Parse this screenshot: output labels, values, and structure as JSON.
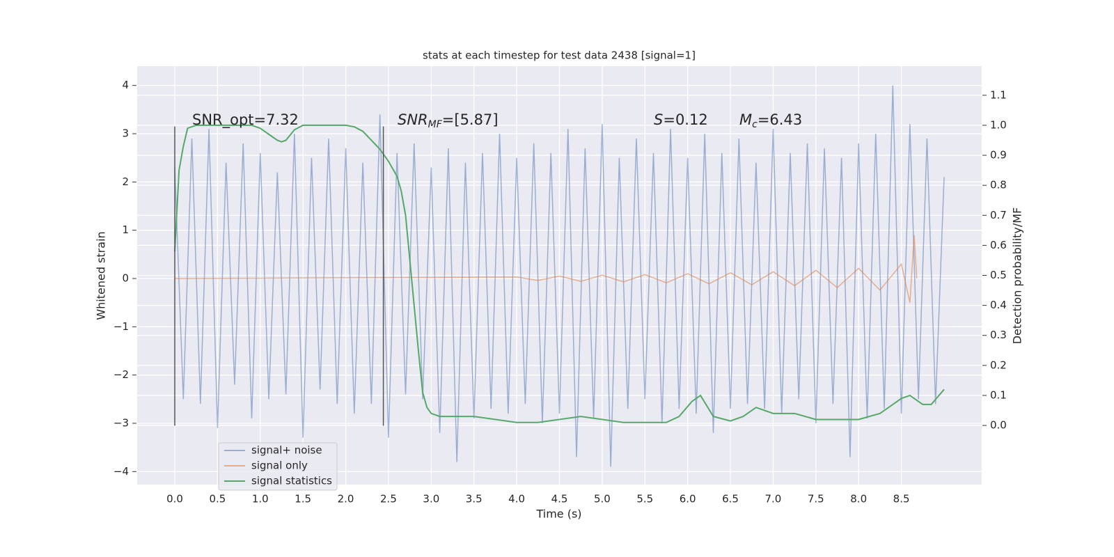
{
  "chart_data": {
    "type": "line",
    "title": "stats at each timestep for test data 2438 [signal=1]",
    "xlabel": "Time (s)",
    "ylabel": "Whitened strain",
    "y2label": "Detection probability/MF",
    "xlim": [
      -0.44,
      9.44
    ],
    "ylim": [
      -4.27,
      4.4
    ],
    "y2lim": [
      -0.197,
      1.197
    ],
    "xticks": [
      {
        "value": 0,
        "label": "0.0"
      },
      {
        "value": 0.5,
        "label": "0.5"
      },
      {
        "value": 1,
        "label": "1.0"
      },
      {
        "value": 1.5,
        "label": "1.5"
      },
      {
        "value": 2,
        "label": "2.0"
      },
      {
        "value": 2.5,
        "label": "2.5"
      },
      {
        "value": 3,
        "label": "3.0"
      },
      {
        "value": 3.5,
        "label": "3.5"
      },
      {
        "value": 4,
        "label": "4.0"
      },
      {
        "value": 4.5,
        "label": "4.5"
      },
      {
        "value": 5,
        "label": "5.0"
      },
      {
        "value": 5.5,
        "label": "5.5"
      },
      {
        "value": 6,
        "label": "6.0"
      },
      {
        "value": 6.5,
        "label": "6.5"
      },
      {
        "value": 7,
        "label": "7.0"
      },
      {
        "value": 7.5,
        "label": "7.5"
      },
      {
        "value": 8,
        "label": "8.0"
      },
      {
        "value": 8.5,
        "label": "8.5"
      }
    ],
    "yticks": [
      {
        "value": -4,
        "label": "−4"
      },
      {
        "value": -3,
        "label": "−3"
      },
      {
        "value": -2,
        "label": "−2"
      },
      {
        "value": -1,
        "label": "−1"
      },
      0,
      1,
      2,
      3,
      4
    ],
    "y2ticks": [
      {
        "value": 0,
        "label": "0.0"
      },
      {
        "value": 0.1,
        "label": "0.1"
      },
      {
        "value": 0.2,
        "label": "0.2"
      },
      {
        "value": 0.3,
        "label": "0.3"
      },
      {
        "value": 0.4,
        "label": "0.4"
      },
      {
        "value": 0.5,
        "label": "0.5"
      },
      {
        "value": 0.6,
        "label": "0.6"
      },
      {
        "value": 0.7,
        "label": "0.7"
      },
      {
        "value": 0.8,
        "label": "0.8"
      },
      {
        "value": 0.9,
        "label": "0.9"
      },
      {
        "value": 1.0,
        "label": "1.0"
      },
      {
        "value": 1.1,
        "label": "1.1"
      }
    ],
    "grid": true,
    "legend": "lower left",
    "vlines": [
      0,
      2.44
    ],
    "vline_range": [
      -3.05,
      3.15
    ],
    "annotations": [
      {
        "text": "SNR_opt=7.32"
      },
      {
        "italic": "SNR",
        "sub": "MF",
        "text": "=[5.87]"
      },
      {
        "italic": "S",
        "text": "=0.12"
      },
      {
        "italic": "M",
        "sub": "c",
        "text": "=6.43"
      }
    ],
    "series": [
      {
        "name": "signal+ noise",
        "color": "#4c72b0",
        "opacity": 0.5,
        "x": [
          0,
          0.1,
          0.2,
          0.3,
          0.4,
          0.5,
          0.6,
          0.7,
          0.8,
          0.9,
          1,
          1.1,
          1.2,
          1.3,
          1.4,
          1.5,
          1.6,
          1.7,
          1.8,
          1.9,
          2,
          2.1,
          2.2,
          2.3,
          2.4,
          2.5,
          2.6,
          2.7,
          2.8,
          2.9,
          3,
          3.1,
          3.2,
          3.3,
          3.4,
          3.5,
          3.6,
          3.7,
          3.8,
          3.9,
          4,
          4.1,
          4.2,
          4.3,
          4.4,
          4.5,
          4.6,
          4.7,
          4.8,
          4.9,
          5,
          5.1,
          5.2,
          5.3,
          5.4,
          5.5,
          5.6,
          5.7,
          5.8,
          5.9,
          6,
          6.1,
          6.2,
          6.3,
          6.4,
          6.5,
          6.6,
          6.7,
          6.8,
          6.9,
          7,
          7.1,
          7.2,
          7.3,
          7.4,
          7.5,
          7.6,
          7.7,
          7.8,
          7.9,
          8,
          8.1,
          8.2,
          8.3,
          8.4,
          8.5,
          8.6,
          8.7,
          8.8,
          8.9,
          9
        ],
        "values": [
          2.3,
          -2.5,
          2.9,
          -2.6,
          3.1,
          -3.1,
          2.4,
          -2.2,
          2.8,
          -2.9,
          2.6,
          -2.5,
          2.2,
          -2.4,
          3.0,
          -3.3,
          2.5,
          -2.3,
          2.9,
          -2.6,
          2.7,
          -2.8,
          2.4,
          -2.6,
          3.4,
          -3.3,
          2.6,
          -2.4,
          2.8,
          -2.5,
          2.3,
          -3.2,
          2.7,
          -3.8,
          2.4,
          -2.9,
          2.6,
          -2.7,
          3.0,
          -2.8,
          2.5,
          -2.6,
          2.8,
          -3.0,
          2.6,
          -2.8,
          3.1,
          -3.7,
          2.7,
          -2.9,
          3.2,
          -3.9,
          2.5,
          -2.7,
          2.9,
          -2.5,
          2.6,
          -3.0,
          3.1,
          -2.7,
          2.5,
          -2.8,
          3.0,
          -3.2,
          2.6,
          -2.7,
          2.9,
          -2.6,
          2.4,
          -2.7,
          3.1,
          -2.8,
          2.6,
          -2.5,
          2.8,
          -3.0,
          2.7,
          -2.6,
          2.5,
          -3.7,
          2.8,
          -2.9,
          3.0,
          -2.7,
          4.0,
          -2.8,
          3.2,
          -2.5,
          2.9,
          -2.6,
          2.1
        ]
      },
      {
        "name": "signal only",
        "color": "#dd8452",
        "opacity": 0.6,
        "x": [
          0,
          4,
          4.25,
          4.5,
          4.75,
          5,
          5.25,
          5.5,
          5.75,
          6,
          6.25,
          6.5,
          6.75,
          7,
          7.25,
          7.5,
          7.75,
          8,
          8.25,
          8.5,
          8.6,
          8.65,
          8.68
        ],
        "values": [
          0,
          0.03,
          -0.04,
          0.05,
          -0.06,
          0.07,
          -0.07,
          0.08,
          -0.09,
          0.1,
          -0.11,
          0.12,
          -0.13,
          0.14,
          -0.15,
          0.17,
          -0.19,
          0.21,
          -0.24,
          0.3,
          -0.5,
          0.9,
          0
        ]
      },
      {
        "name": "signal statistics",
        "color": "#55a868",
        "opacity": 1,
        "axis": "y2",
        "x": [
          0,
          0.05,
          0.1,
          0.15,
          0.25,
          0.5,
          0.9,
          1,
          1.1,
          1.2,
          1.25,
          1.3,
          1.4,
          1.5,
          1.75,
          2,
          2.1,
          2.2,
          2.3,
          2.4,
          2.5,
          2.6,
          2.65,
          2.7,
          2.75,
          2.8,
          2.85,
          2.9,
          2.95,
          3,
          3.1,
          3.3,
          3.5,
          3.75,
          4,
          4.25,
          4.5,
          4.75,
          5,
          5.25,
          5.5,
          5.75,
          5.9,
          6.05,
          6.15,
          6.3,
          6.5,
          6.65,
          6.8,
          7,
          7.25,
          7.5,
          7.75,
          8,
          8.25,
          8.5,
          8.6,
          8.75,
          8.85,
          9
        ],
        "values": [
          0.58,
          0.85,
          0.93,
          0.99,
          1.0,
          1.0,
          1.0,
          0.99,
          0.97,
          0.95,
          0.945,
          0.95,
          0.985,
          1.0,
          1.0,
          1.0,
          0.995,
          0.98,
          0.95,
          0.92,
          0.88,
          0.83,
          0.78,
          0.7,
          0.55,
          0.4,
          0.25,
          0.11,
          0.06,
          0.04,
          0.03,
          0.03,
          0.03,
          0.02,
          0.01,
          0.01,
          0.02,
          0.03,
          0.02,
          0.01,
          0.01,
          0.01,
          0.03,
          0.08,
          0.1,
          0.03,
          0.015,
          0.03,
          0.06,
          0.04,
          0.04,
          0.02,
          0.02,
          0.02,
          0.04,
          0.09,
          0.1,
          0.07,
          0.07,
          0.12
        ]
      }
    ]
  }
}
